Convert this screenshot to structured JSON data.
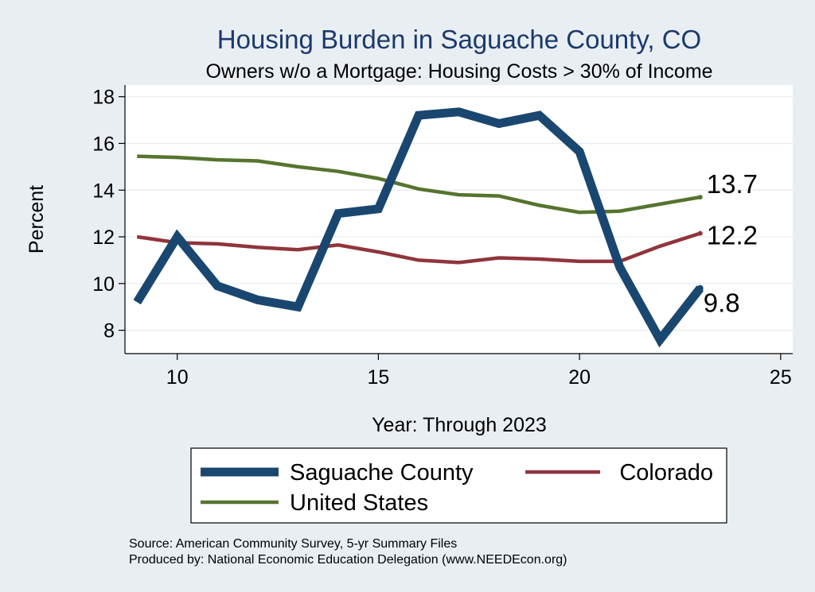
{
  "chart_data": {
    "type": "line",
    "title": "Housing Burden in Saguache County, CO",
    "subtitle": "Owners w/o a Mortgage: Housing Costs > 30% of Income",
    "xlabel": "Year: Through 2023",
    "ylabel": "Percent",
    "xlim": [
      8.7,
      25.3
    ],
    "ylim": [
      7.0,
      18.5
    ],
    "x_ticks": [
      10,
      15,
      20,
      25
    ],
    "y_ticks": [
      8,
      10,
      12,
      14,
      16,
      18
    ],
    "grid": true,
    "legend": "bottom",
    "x": [
      9,
      10,
      11,
      12,
      13,
      14,
      15,
      16,
      17,
      18,
      19,
      20,
      21,
      22,
      23
    ],
    "series": [
      {
        "name": "Saguache County",
        "color": "#1a476f",
        "values": [
          9.2,
          12.0,
          9.9,
          9.3,
          9.0,
          13.0,
          13.2,
          17.2,
          17.35,
          16.85,
          17.2,
          15.65,
          10.7,
          7.6,
          9.8
        ],
        "end_label": "9.8"
      },
      {
        "name": "Colorado",
        "color": "#90353b",
        "values": [
          12.0,
          11.75,
          11.7,
          11.55,
          11.45,
          11.65,
          11.35,
          11.0,
          10.9,
          11.1,
          11.05,
          10.95,
          10.95,
          11.6,
          12.15
        ],
        "end_label": "12.2"
      },
      {
        "name": "United States",
        "color": "#55752f",
        "values": [
          15.45,
          15.4,
          15.3,
          15.25,
          15.0,
          14.8,
          14.5,
          14.05,
          13.8,
          13.75,
          13.35,
          13.05,
          13.1,
          13.4,
          13.7
        ],
        "end_label": "13.7"
      }
    ]
  },
  "footer": {
    "source": "Source: American Community Survey, 5-yr Summary Files",
    "produced_by": "Produced by: National Economic Education Delegation (www.NEEDEcon.org)"
  }
}
